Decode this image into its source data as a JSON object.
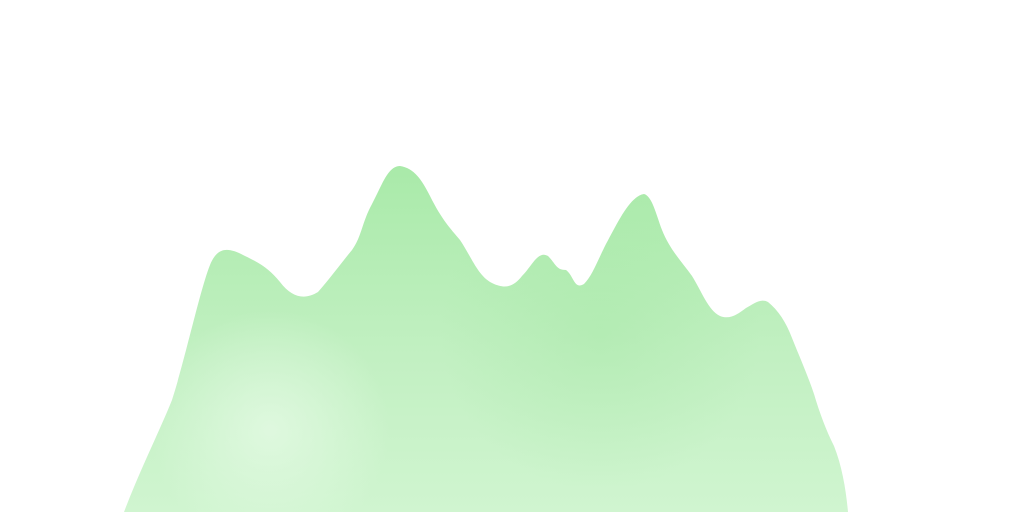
{
  "image": {
    "description_visible_text": "",
    "colors": {
      "background": "#ffffff",
      "shape_top": "#a9eaa9",
      "shape_mid": "#c2f0c2",
      "shape_bottom": "#d0f5d0",
      "highlight": "#e4fae4"
    }
  }
}
